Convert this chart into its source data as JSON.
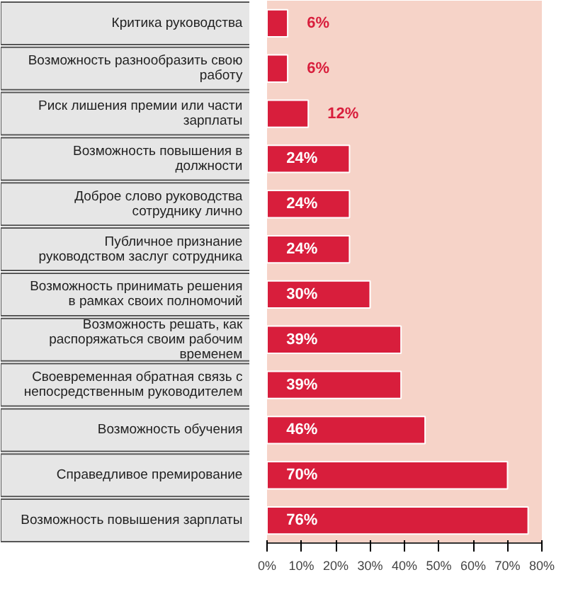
{
  "chart_data": {
    "type": "bar",
    "orientation": "horizontal",
    "categories": [
      "Критика руководства",
      "Возможность разнообразить свою работу",
      "Риск лишения премии или части зарплаты",
      "Возможность повышения в должности",
      "Доброе слово руководства сотруднику лично",
      "Публичное признание руководством заслуг сотрудника",
      "Возможность принимать решения в рамках своих полномочий",
      "Возможность решать, как распоряжаться своим рабочим временем",
      "Своевременная обратная связь с непосредственным руководителем",
      "Возможность обучения",
      "Справедливое премирование",
      "Возможность повышения зарплаты"
    ],
    "values": [
      6,
      6,
      12,
      24,
      24,
      24,
      30,
      39,
      39,
      46,
      70,
      76
    ],
    "value_labels": [
      "6%",
      "6%",
      "12%",
      "24%",
      "24%",
      "24%",
      "30%",
      "39%",
      "39%",
      "46%",
      "70%",
      "76%"
    ],
    "color": "#d81e3c",
    "xlim": [
      0,
      80
    ],
    "xticks": [
      {
        "value": 0,
        "label": "0%"
      },
      {
        "value": 10,
        "label": "10%"
      },
      {
        "value": 20,
        "label": "20%"
      },
      {
        "value": 30,
        "label": "30%"
      },
      {
        "value": 40,
        "label": "40%"
      },
      {
        "value": 50,
        "label": "50%"
      },
      {
        "value": 60,
        "label": "60%"
      },
      {
        "value": 70,
        "label": "70%"
      },
      {
        "value": 80,
        "label": "80%"
      }
    ]
  }
}
